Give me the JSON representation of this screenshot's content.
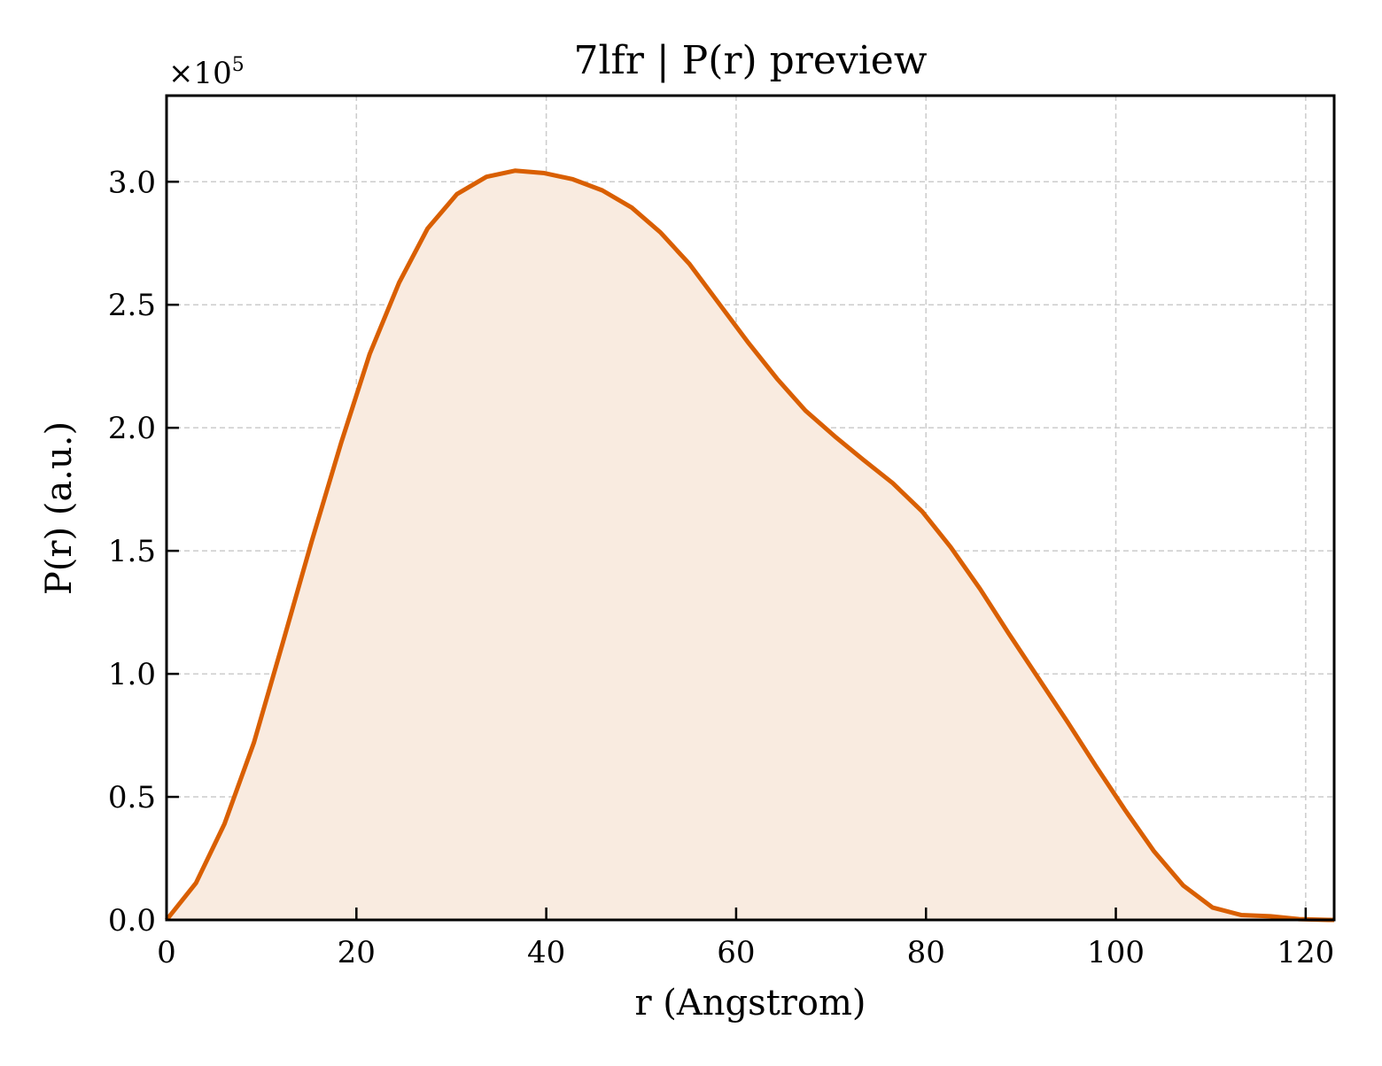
{
  "chart_data": {
    "type": "area",
    "title": "7lfr | P(r) preview",
    "xlabel": "r (Angstrom)",
    "ylabel": "P(r) (a.u.)",
    "y_multiplier": {
      "base": "×10",
      "exponent": "5"
    },
    "xlim": [
      0,
      123
    ],
    "ylim": [
      0,
      3.35
    ],
    "x_ticks": [
      0,
      20,
      40,
      60,
      80,
      100,
      120
    ],
    "x_tick_labels": [
      "0",
      "20",
      "40",
      "60",
      "80",
      "100",
      "120"
    ],
    "y_ticks": [
      0,
      0.5,
      1.0,
      1.5,
      2.0,
      2.5,
      3.0
    ],
    "y_tick_labels": [
      "0.0",
      "0.5",
      "1.0",
      "1.5",
      "2.0",
      "2.5",
      "3.0"
    ],
    "grid": true,
    "legend": "none",
    "series": [
      {
        "color": "#d95f02",
        "fill": "#f9ebe0",
        "x": [
          0,
          3.1,
          6.1,
          9.2,
          12.2,
          15.3,
          18.4,
          21.4,
          24.5,
          27.5,
          30.6,
          33.7,
          36.7,
          39.8,
          42.8,
          45.9,
          49.0,
          52.0,
          55.1,
          58.1,
          61.2,
          64.3,
          67.3,
          70.4,
          73.4,
          76.5,
          79.6,
          82.6,
          85.7,
          88.7,
          91.8,
          94.9,
          97.9,
          101.0,
          104.0,
          107.1,
          110.2,
          113.2,
          116.3,
          119.3,
          122.4
        ],
        "y": [
          0.0,
          0.15,
          0.39,
          0.72,
          1.12,
          1.54,
          1.94,
          2.3,
          2.59,
          2.81,
          2.95,
          3.02,
          3.045,
          3.035,
          3.01,
          2.965,
          2.895,
          2.795,
          2.665,
          2.51,
          2.35,
          2.2,
          2.07,
          1.965,
          1.87,
          1.775,
          1.66,
          1.515,
          1.345,
          1.165,
          0.985,
          0.805,
          0.625,
          0.445,
          0.28,
          0.14,
          0.05,
          0.02,
          0.015,
          0.003,
          0.0
        ]
      }
    ]
  }
}
